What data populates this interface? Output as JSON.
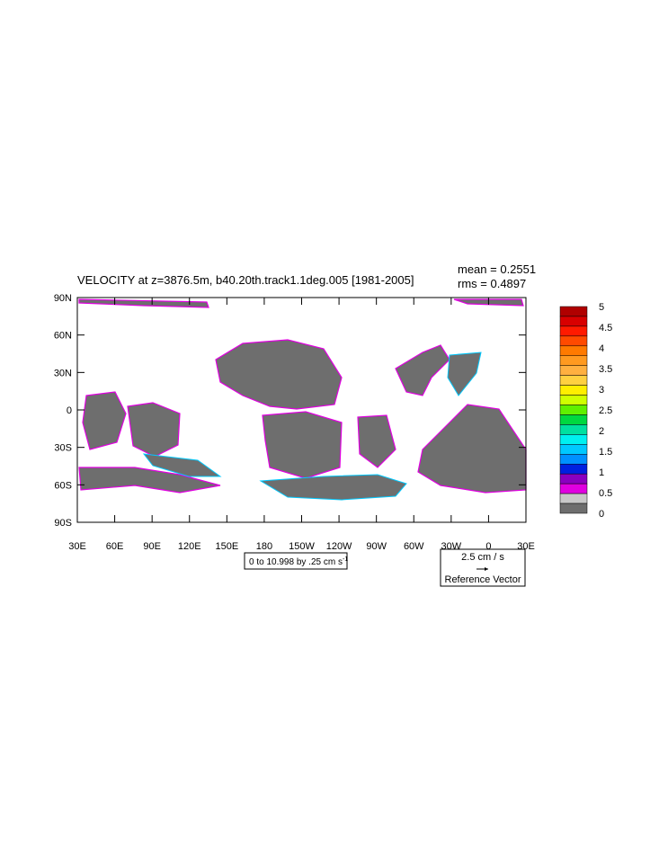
{
  "title": "VELOCITY at z=3876.5m, b40.20th.track1.1deg.005 [1981-2005]",
  "stats": {
    "mean": "mean = 0.2551",
    "rms": "rms = 0.4897"
  },
  "lat_labels": [
    "90N",
    "60N",
    "30N",
    "0",
    "30S",
    "60S",
    "90S"
  ],
  "lon_labels": [
    "30E",
    "60E",
    "90E",
    "120E",
    "150E",
    "180",
    "150W",
    "120W",
    "90W",
    "60W",
    "30W",
    "0",
    "30E"
  ],
  "colorbar": {
    "levels": [
      5,
      4.5,
      4,
      3.5,
      3,
      2.5,
      2,
      1.5,
      1,
      0.5,
      0
    ],
    "colors": [
      "#b00000",
      "#d80000",
      "#ff1a00",
      "#ff4a00",
      "#ff7a00",
      "#ff9a20",
      "#ffb040",
      "#ffd040",
      "#ffee00",
      "#d0ff00",
      "#60f000",
      "#00d840",
      "#00e0a0",
      "#00f0f0",
      "#00c8ff",
      "#0090ff",
      "#0020e0",
      "#8a00c0",
      "#e000e0",
      "#c8c8c8",
      "#6e6e6e"
    ]
  },
  "contour_info": {
    "text": "0 to 10.998 by .25 cm s",
    "superscript": "-1"
  },
  "reference_vector": {
    "magnitude": "2.5 cm / s",
    "label": "Reference Vector"
  }
}
